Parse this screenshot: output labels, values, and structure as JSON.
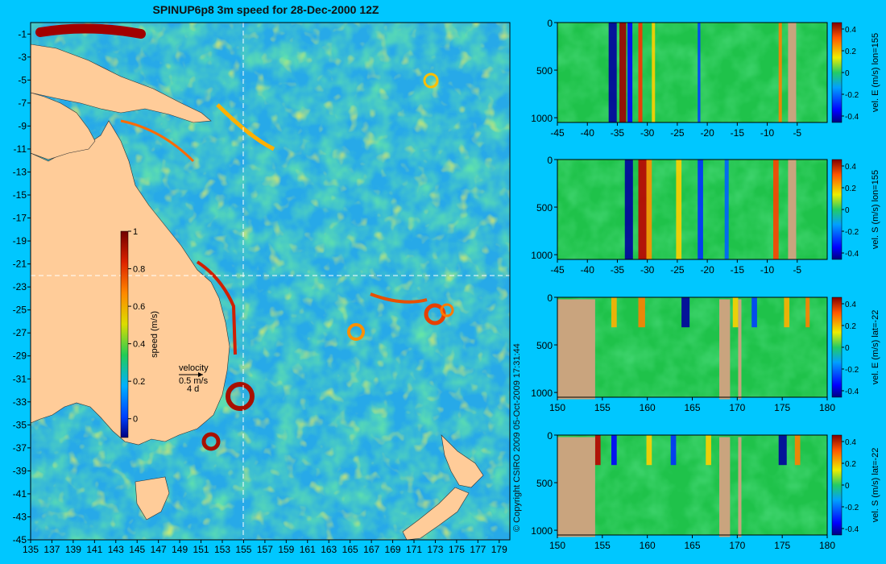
{
  "colors": {
    "background": "#00c7ff",
    "land": "#ffcc99",
    "section_land": "#c9a47e"
  },
  "title": "SPINUP6p8 3m speed for 28-Dec-2000 12Z",
  "copyright": "© Copyright CSIRO 2009   05-Oct-2009 17:31:44",
  "chart_data": [
    {
      "type": "heatmap",
      "name": "map-speed",
      "x_ticks": [
        135,
        137,
        139,
        141,
        143,
        145,
        147,
        149,
        151,
        153,
        155,
        157,
        159,
        161,
        163,
        165,
        167,
        169,
        171,
        173,
        175,
        177,
        179
      ],
      "y_ticks": [
        -1,
        -3,
        -5,
        -7,
        -9,
        -11,
        -13,
        -15,
        -17,
        -19,
        -21,
        -23,
        -25,
        -27,
        -29,
        -31,
        -33,
        -35,
        -37,
        -39,
        -41,
        -43,
        -45
      ],
      "xlim": [
        135,
        180
      ],
      "ylim": [
        -45,
        0
      ],
      "section_lines": {
        "lon": 155,
        "lat": -22
      },
      "colorbar": {
        "label": "speed (m/s)",
        "range": [
          -0.1,
          1
        ],
        "ticks": [
          0,
          0.2,
          0.4,
          0.6,
          0.8,
          1
        ],
        "tick_labels": [
          "0",
          "0.2",
          "0.4",
          "0.6",
          "0.8",
          "1"
        ]
      },
      "velocity_key": {
        "label": "velocity",
        "speed": "0.5 m/s",
        "interval": "4 d"
      }
    },
    {
      "type": "heatmap",
      "name": "section-1",
      "colorbar_label": "vel. E (m/s) lon=155",
      "x_ticks": [
        "-45",
        "-40",
        "-35",
        "-30",
        "-25",
        "-20",
        "-15",
        "-10",
        "-5"
      ],
      "xlim": [
        -45,
        0
      ],
      "y_ticks": [
        "0",
        "500",
        "1000"
      ],
      "ylim": [
        1050,
        0
      ],
      "colorbar_ticks": [
        "0.4",
        "0.2",
        "0",
        "-0.2",
        "-0.4"
      ]
    },
    {
      "type": "heatmap",
      "name": "section-2",
      "colorbar_label": "vel. S (m/s) lon=155",
      "x_ticks": [
        "-45",
        "-40",
        "-35",
        "-30",
        "-25",
        "-20",
        "-15",
        "-10",
        "-5"
      ],
      "xlim": [
        -45,
        0
      ],
      "y_ticks": [
        "0",
        "500",
        "1000"
      ],
      "ylim": [
        1050,
        0
      ],
      "colorbar_ticks": [
        "0.4",
        "0.2",
        "0",
        "-0.2",
        "-0.4"
      ]
    },
    {
      "type": "heatmap",
      "name": "section-3",
      "colorbar_label": "vel. E (m/s) lat=-22",
      "x_ticks": [
        "150",
        "155",
        "160",
        "165",
        "170",
        "175",
        "180"
      ],
      "xlim": [
        150,
        180
      ],
      "y_ticks": [
        "0",
        "500",
        "1000"
      ],
      "ylim": [
        1050,
        0
      ],
      "colorbar_ticks": [
        "0.4",
        "0.2",
        "0",
        "-0.2",
        "-0.4"
      ]
    },
    {
      "type": "heatmap",
      "name": "section-4",
      "colorbar_label": "vel. S (m/s) lat=-22",
      "x_ticks": [
        "150",
        "155",
        "160",
        "165",
        "170",
        "175",
        "180"
      ],
      "xlim": [
        150,
        180
      ],
      "y_ticks": [
        "0",
        "500",
        "1000"
      ],
      "ylim": [
        1050,
        0
      ],
      "colorbar_ticks": [
        "0.4",
        "0.2",
        "0",
        "-0.2",
        "-0.4"
      ]
    }
  ]
}
